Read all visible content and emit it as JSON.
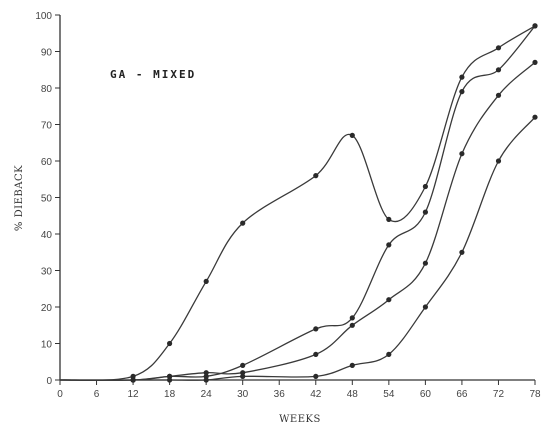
{
  "chart_data": {
    "type": "line",
    "title": "",
    "annotation": "GA - MIXED",
    "xlabel": "WEEKS",
    "ylabel": "% DIEBACK",
    "x_ticks": [
      0,
      6,
      12,
      18,
      24,
      30,
      36,
      42,
      48,
      54,
      60,
      66,
      72,
      78
    ],
    "y_ticks": [
      0,
      10,
      20,
      30,
      40,
      50,
      60,
      70,
      80,
      90,
      100
    ],
    "xlim": [
      0,
      78
    ],
    "ylim": [
      0,
      100
    ],
    "grid": false,
    "series": [
      {
        "x": [
          0,
          12,
          18,
          24,
          30,
          42,
          48,
          54,
          60,
          66,
          72,
          78
        ],
        "y": [
          0,
          1,
          10,
          27,
          43,
          56,
          67,
          44,
          53,
          83,
          91,
          97
        ]
      },
      {
        "x": [
          0,
          12,
          18,
          24,
          30,
          42,
          48,
          54,
          60,
          66,
          72,
          78
        ],
        "y": [
          0,
          0,
          1,
          1,
          4,
          14,
          17,
          37,
          46,
          79,
          85,
          97
        ]
      },
      {
        "x": [
          0,
          12,
          18,
          24,
          30,
          42,
          48,
          54,
          60,
          66,
          72,
          78
        ],
        "y": [
          0,
          0,
          1,
          2,
          2,
          7,
          15,
          22,
          32,
          62,
          78,
          87
        ]
      },
      {
        "x": [
          0,
          12,
          18,
          24,
          30,
          42,
          48,
          54,
          60,
          66,
          72,
          78
        ],
        "y": [
          0,
          0,
          0,
          0,
          1,
          1,
          4,
          7,
          20,
          35,
          60,
          72
        ]
      }
    ],
    "colors": {
      "line": "#3a3a3a",
      "marker": "#2a2a2a",
      "axis": "#333333"
    }
  }
}
